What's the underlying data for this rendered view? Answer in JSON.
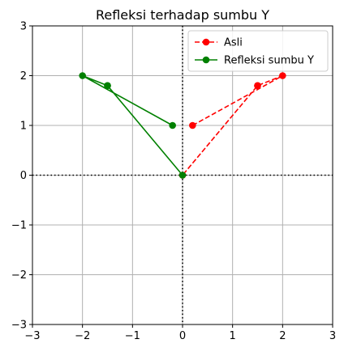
{
  "chart_data": {
    "type": "line",
    "title": "Refleksi terhadap sumbu Y",
    "xlabel": "",
    "ylabel": "",
    "xlim": [
      -3,
      3
    ],
    "ylim": [
      -3,
      3
    ],
    "xticks": [
      -3,
      -2,
      -1,
      0,
      1,
      2,
      3
    ],
    "yticks": [
      -3,
      -2,
      -1,
      0,
      1,
      2,
      3
    ],
    "xtick_labels": [
      "−3",
      "−2",
      "−1",
      "0",
      "1",
      "2",
      "3"
    ],
    "ytick_labels": [
      "−3",
      "−2",
      "−1",
      "0",
      "1",
      "2",
      "3"
    ],
    "grid": true,
    "legend_position": "top-right",
    "reference_lines": {
      "horizontal_y": 0,
      "vertical_x": 0,
      "style": "dotted",
      "color": "#000000"
    },
    "series": [
      {
        "name": "Asli",
        "color": "#ff0000",
        "line_style": "dashed",
        "marker": "circle",
        "x": [
          0.2,
          2,
          1.5,
          0,
          1.5
        ],
        "y": [
          1,
          2,
          1.8,
          0,
          1.8
        ]
      },
      {
        "name": "Refleksi sumbu Y",
        "color": "#008000",
        "line_style": "solid",
        "marker": "circle",
        "x": [
          -0.2,
          -2,
          -1.5,
          0,
          -1.5
        ],
        "y": [
          1,
          2,
          1.8,
          0,
          1.8
        ]
      }
    ]
  }
}
